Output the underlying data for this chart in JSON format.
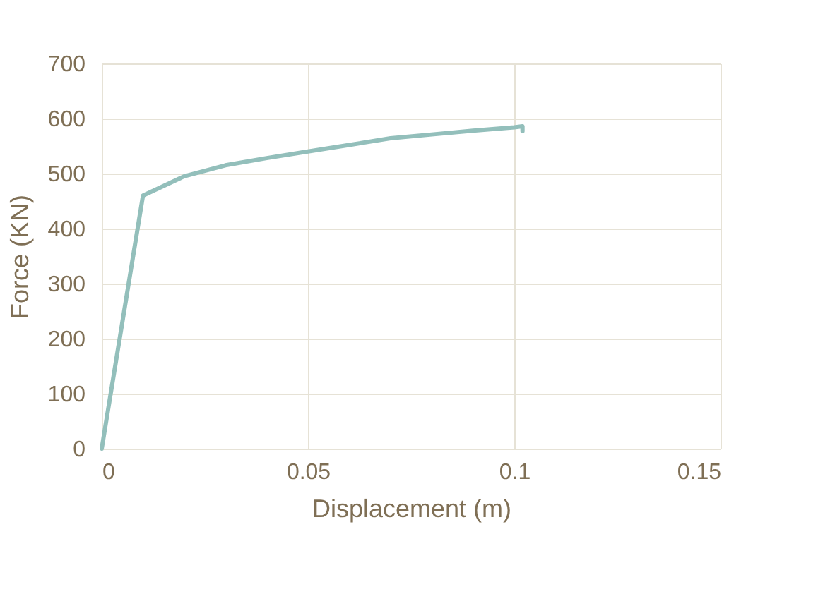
{
  "chart_data": {
    "type": "line",
    "xlabel": "Displacement (m)",
    "ylabel": "Force (KN)",
    "x": [
      0,
      0.01,
      0.02,
      0.03,
      0.04,
      0.05,
      0.06,
      0.07,
      0.08,
      0.09,
      0.1,
      0.102,
      0.102
    ],
    "series": [
      {
        "color": "#93bfbb",
        "values": [
          0,
          460,
          495,
          515,
          528,
          540,
          552,
          564,
          571,
          578,
          584,
          586,
          577
        ]
      }
    ],
    "xlim": [
      0,
      0.15
    ],
    "xticks": [
      0,
      0.05,
      0.1,
      0.15
    ],
    "ylim": [
      0,
      700
    ],
    "yticks": [
      0,
      100,
      200,
      300,
      400,
      500,
      600,
      700
    ],
    "grid": true,
    "marker": "none",
    "line_style": "solid"
  }
}
